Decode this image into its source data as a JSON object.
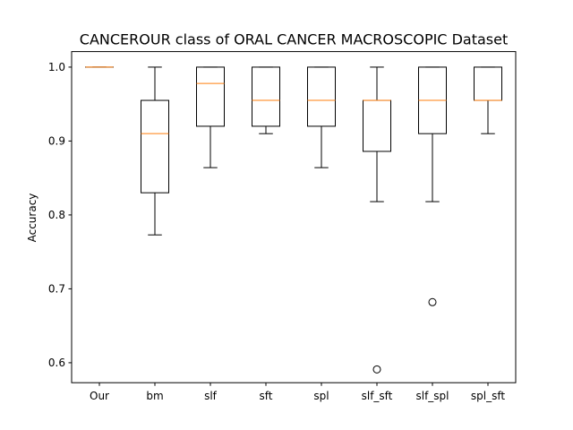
{
  "chart_data": {
    "type": "box",
    "title": "CANCEROUR class of ORAL CANCER MACROSCOPIC Dataset",
    "xlabel": "",
    "ylabel": "Accuracy",
    "ylim": [
      0.573,
      1.021
    ],
    "yticks": [
      0.6,
      0.7,
      0.8,
      0.9,
      1.0
    ],
    "ytick_labels": [
      "0.6",
      "0.7",
      "0.8",
      "0.9",
      "1.0"
    ],
    "grid": false,
    "colors": {
      "box": "#000000",
      "median": "#ff7f0e",
      "flier": "#000000"
    },
    "categories": [
      "Our",
      "bm",
      "slf",
      "sft",
      "spl",
      "slf_sft",
      "slf_spl",
      "spl_sft"
    ],
    "boxes": [
      {
        "whislo": 1.0,
        "q1": 1.0,
        "med": 1.0,
        "q3": 1.0,
        "whishi": 1.0,
        "fliers": []
      },
      {
        "whislo": 0.773,
        "q1": 0.83,
        "med": 0.91,
        "q3": 0.955,
        "whishi": 1.0,
        "fliers": []
      },
      {
        "whislo": 0.864,
        "q1": 0.92,
        "med": 0.978,
        "q3": 1.0,
        "whishi": 1.0,
        "fliers": []
      },
      {
        "whislo": 0.91,
        "q1": 0.92,
        "med": 0.955,
        "q3": 1.0,
        "whishi": 1.0,
        "fliers": []
      },
      {
        "whislo": 0.864,
        "q1": 0.92,
        "med": 0.955,
        "q3": 1.0,
        "whishi": 1.0,
        "fliers": []
      },
      {
        "whislo": 0.818,
        "q1": 0.886,
        "med": 0.955,
        "q3": 0.955,
        "whishi": 1.0,
        "fliers": [
          0.591
        ]
      },
      {
        "whislo": 0.818,
        "q1": 0.91,
        "med": 0.955,
        "q3": 1.0,
        "whishi": 1.0,
        "fliers": [
          0.682
        ]
      },
      {
        "whislo": 0.91,
        "q1": 0.955,
        "med": 0.955,
        "q3": 1.0,
        "whishi": 1.0,
        "fliers": []
      }
    ]
  }
}
